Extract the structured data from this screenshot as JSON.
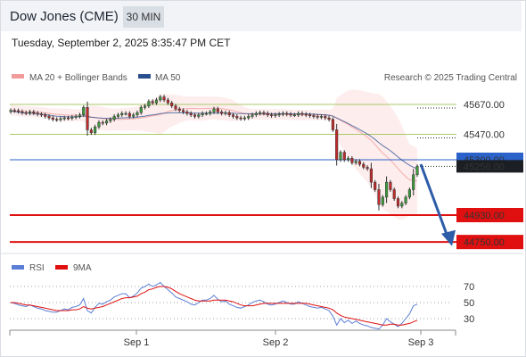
{
  "header": {
    "title": "Dow Jones (CME)",
    "timeframe": "30 MIN",
    "datetime": "Tuesday, September 2, 2025 8:35:47 PM CET"
  },
  "colors": {
    "bollinger": "#f29b9b",
    "ma50": "#2a4f8f",
    "resistance": "#a9c96a",
    "pivot": "#2a62c9",
    "support": "#e01010",
    "arrow": "#2d5ca8",
    "rsi": "#5b7fd6",
    "rsi_ma": "#e01010"
  },
  "chart_data": [
    {
      "type": "candlestick",
      "title": "",
      "legend": [
        {
          "label": "MA 20 + Bollinger Bands",
          "color": "#f29b9b"
        },
        {
          "label": "MA 50",
          "color": "#2a4f8f"
        }
      ],
      "credit": "Research © 2025 Trading Central",
      "levels": [
        {
          "value": 45670,
          "label": "45670.00",
          "kind": "resistance"
        },
        {
          "value": 45470,
          "label": "45470.00",
          "kind": "resistance"
        },
        {
          "value": 45300,
          "label": "45300.00",
          "kind": "pivot"
        },
        {
          "value": 44930,
          "label": "44930.00",
          "kind": "support"
        },
        {
          "value": 44750,
          "label": "44750.00",
          "kind": "support"
        }
      ],
      "last_price": {
        "value": 45256,
        "label": "45256.00"
      },
      "close": [
        45630,
        45628,
        45622,
        45615,
        45612,
        45620,
        45612,
        45605,
        45600,
        45590,
        45580,
        45570,
        45568,
        45575,
        45580,
        45578,
        45585,
        45590,
        45600,
        45650,
        45500,
        45480,
        45520,
        45550,
        45545,
        45560,
        45570,
        45590,
        45600,
        45610,
        45610,
        45590,
        45600,
        45615,
        45650,
        45660,
        45690,
        45680,
        45700,
        45720,
        45700,
        45680,
        45660,
        45640,
        45630,
        45620,
        45610,
        45600,
        45590,
        45600,
        45610,
        45610,
        45620,
        45640,
        45620,
        45610,
        45615,
        45600,
        45590,
        45580,
        45575,
        45580,
        45590,
        45600,
        45610,
        45615,
        45610,
        45600,
        45595,
        45600,
        45605,
        45610,
        45605,
        45600,
        45600,
        45610,
        45605,
        45600,
        45595,
        45590,
        45585,
        45590,
        45580,
        45570,
        45500,
        45300,
        45350,
        45300,
        45310,
        45280,
        45290,
        45270,
        45250,
        45240,
        45150,
        45100,
        45000,
        45050,
        45150,
        45100,
        45040,
        44990,
        45010,
        45050,
        45100,
        45200,
        45256
      ],
      "ma50": [
        45625,
        45622,
        45618,
        45614,
        45612,
        45611,
        45609,
        45607,
        45605,
        45602,
        45598,
        45595,
        45591,
        45590,
        45588,
        45587,
        45587,
        45587,
        45588,
        45593,
        45589,
        45584,
        45582,
        45580,
        45578,
        45577,
        45577,
        45577,
        45578,
        45580,
        45581,
        45581,
        45582,
        45585,
        45589,
        45592,
        45597,
        45600,
        45604,
        45609,
        45611,
        45613,
        45614,
        45614,
        45614,
        45614,
        45614,
        45613,
        45612,
        45611,
        45611,
        45611,
        45611,
        45612,
        45612,
        45612,
        45612,
        45612,
        45611,
        45610,
        45609,
        45608,
        45608,
        45608,
        45608,
        45609,
        45609,
        45608,
        45608,
        45608,
        45608,
        45608,
        45608,
        45607,
        45607,
        45607,
        45607,
        45607,
        45606,
        45605,
        45604,
        45602,
        45600,
        45597,
        45591,
        45579,
        45567,
        45555,
        45542,
        45528,
        45515,
        45501,
        45487,
        45472,
        45455,
        45436,
        45414,
        45394,
        45378,
        45360,
        45340,
        45318,
        45298,
        45280,
        45263,
        45250,
        45240
      ],
      "x_labels": [
        "Sep 1",
        "Sep 2",
        "Sep 3"
      ]
    },
    {
      "type": "line",
      "title": "",
      "legend": [
        {
          "label": "RSI",
          "color": "#5b7fd6"
        },
        {
          "label": "9MA",
          "color": "#e01010"
        }
      ],
      "levels": [
        {
          "value": 70,
          "label": "70"
        },
        {
          "value": 50,
          "label": "50"
        },
        {
          "value": 30,
          "label": "30"
        }
      ],
      "ylim": [
        15,
        85
      ],
      "rsi": [
        50,
        49,
        47,
        46,
        45,
        47,
        45,
        43,
        42,
        40,
        39,
        38,
        38,
        40,
        42,
        41,
        44,
        45,
        47,
        55,
        40,
        37,
        44,
        49,
        48,
        51,
        53,
        57,
        59,
        61,
        61,
        56,
        58,
        62,
        68,
        70,
        73,
        70,
        72,
        75,
        70,
        66,
        62,
        57,
        55,
        53,
        51,
        48,
        47,
        50,
        53,
        53,
        55,
        59,
        54,
        51,
        52,
        48,
        46,
        44,
        43,
        45,
        47,
        50,
        52,
        53,
        51,
        48,
        47,
        48,
        50,
        52,
        50,
        48,
        48,
        51,
        49,
        47,
        45,
        44,
        43,
        44,
        42,
        40,
        33,
        22,
        30,
        25,
        28,
        24,
        27,
        24,
        22,
        21,
        19,
        18,
        17,
        22,
        30,
        26,
        23,
        20,
        24,
        30,
        36,
        46,
        48
      ],
      "rsi_ma": [
        50,
        50,
        49,
        48,
        47,
        47,
        46,
        45,
        44,
        43,
        42,
        41,
        40,
        40,
        40,
        40,
        41,
        41,
        42,
        45,
        43,
        42,
        43,
        44,
        45,
        47,
        49,
        51,
        53,
        55,
        56,
        56,
        57,
        58,
        61,
        63,
        66,
        67,
        69,
        70,
        70,
        69,
        67,
        64,
        61,
        59,
        57,
        55,
        53,
        52,
        52,
        52,
        52,
        53,
        53,
        53,
        53,
        52,
        51,
        49,
        47,
        46,
        46,
        46,
        47,
        48,
        49,
        49,
        49,
        49,
        49,
        49,
        49,
        49,
        49,
        49,
        49,
        49,
        48,
        47,
        46,
        45,
        44,
        43,
        41,
        37,
        34,
        32,
        31,
        30,
        29,
        28,
        27,
        26,
        25,
        24,
        23,
        22,
        22,
        23,
        23,
        22,
        22,
        23,
        24,
        26,
        28
      ],
      "x_labels": [
        "Sep 1",
        "Sep 2",
        "Sep 3"
      ]
    }
  ]
}
